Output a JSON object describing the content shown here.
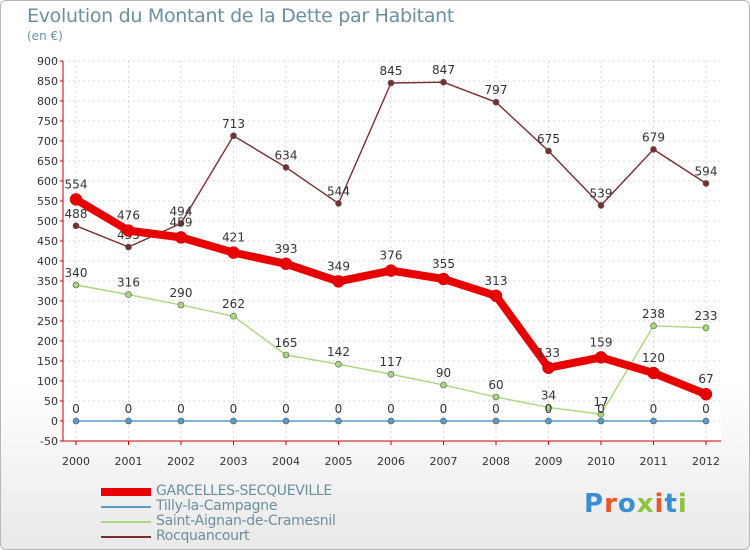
{
  "title": "Evolution du Montant de la Dette par Habitant",
  "subtitle": "(en €)",
  "logo": {
    "text": "Proxiti",
    "colors": [
      "#3a8fd0",
      "#e8572a",
      "#3a8fd0",
      "#8bc540",
      "#e8572a",
      "#3a8fd0",
      "#8bc540"
    ]
  },
  "chart_data": {
    "type": "line",
    "x": [
      "2000",
      "2001",
      "2002",
      "2003",
      "2004",
      "2005",
      "2006",
      "2007",
      "2008",
      "2009",
      "2010",
      "2011",
      "2012"
    ],
    "ylim": [
      -50,
      900
    ],
    "yticks": [
      -50,
      0,
      50,
      100,
      150,
      200,
      250,
      300,
      350,
      400,
      450,
      500,
      550,
      600,
      650,
      700,
      750,
      800,
      850,
      900
    ],
    "grid": true,
    "legend_position": "bottom-left",
    "series": [
      {
        "name": "Rocquancourt",
        "color": "#7a2e2e",
        "values": [
          488,
          435,
          494,
          713,
          634,
          544,
          845,
          847,
          797,
          675,
          539,
          679,
          594
        ]
      },
      {
        "name": "Saint-Aignan-de-Cramesnil",
        "color": "#a8d87a",
        "values": [
          340,
          316,
          290,
          262,
          165,
          142,
          117,
          90,
          60,
          34,
          17,
          238,
          233
        ]
      },
      {
        "name": "Tilly-la-Campagne",
        "color": "#5a9cc8",
        "values": [
          0,
          0,
          0,
          0,
          0,
          0,
          0,
          0,
          0,
          0,
          0,
          0,
          0
        ]
      },
      {
        "name": "GARCELLES-SECQUEVILLE",
        "color": "#e80000",
        "values": [
          554,
          476,
          459,
          421,
          393,
          349,
          376,
          355,
          313,
          133,
          159,
          120,
          67
        ]
      }
    ]
  },
  "legend": [
    {
      "label": "GARCELLES-SECQUEVILLE",
      "color": "#e80000",
      "thickness": 8
    },
    {
      "label": "Tilly-la-Campagne",
      "color": "#5a9cc8",
      "thickness": 2
    },
    {
      "label": "Saint-Aignan-de-Cramesnil",
      "color": "#a8d87a",
      "thickness": 2
    },
    {
      "label": "Rocquancourt",
      "color": "#7a2e2e",
      "thickness": 2
    }
  ]
}
